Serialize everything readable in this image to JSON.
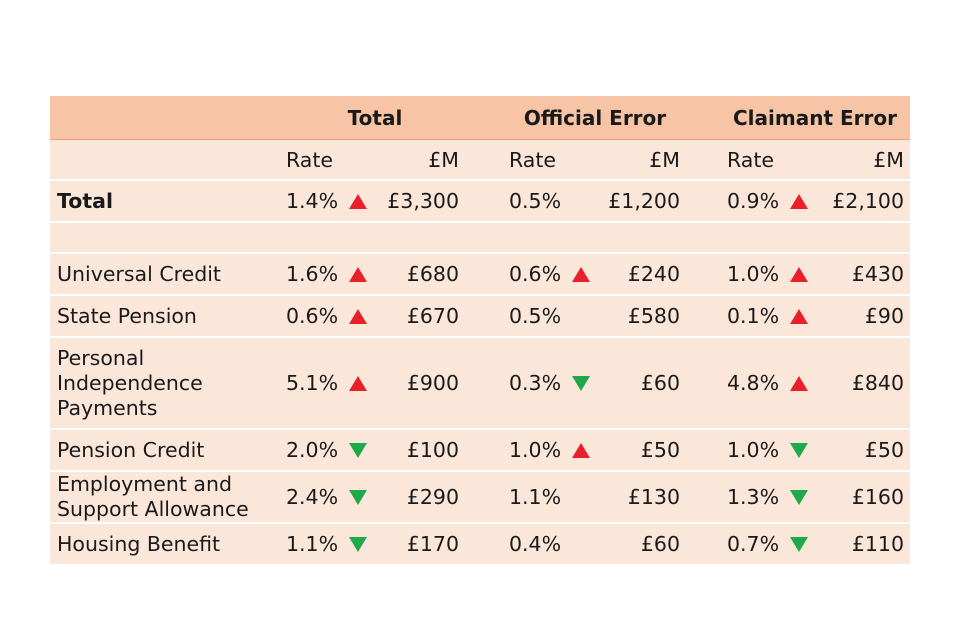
{
  "header": {
    "groups": [
      "Total",
      "Official Error",
      "Claimant Error"
    ],
    "rate_label": "Rate",
    "money_label": "£M"
  },
  "colors": {
    "header_bg": "#f7c4a6",
    "row_bg": "#fbe6da",
    "up_arrow": "#e8202a",
    "down_arrow": "#1ea94a"
  },
  "rows": [
    {
      "name": "Total",
      "bold": true,
      "total_rate": "1.4%",
      "total_arrow": "up",
      "total_m": "£3,300",
      "official_rate": "0.5%",
      "official_arrow": "none",
      "official_m": "£1,200",
      "claimant_rate": "0.9%",
      "claimant_arrow": "up",
      "claimant_m": "£2,100"
    },
    {
      "name": "Universal Credit",
      "total_rate": "1.6%",
      "total_arrow": "up",
      "total_m": "£680",
      "official_rate": "0.6%",
      "official_arrow": "up",
      "official_m": "£240",
      "claimant_rate": "1.0%",
      "claimant_arrow": "up",
      "claimant_m": "£430"
    },
    {
      "name": "State Pension",
      "total_rate": "0.6%",
      "total_arrow": "up",
      "total_m": "£670",
      "official_rate": "0.5%",
      "official_arrow": "none",
      "official_m": "£580",
      "claimant_rate": "0.1%",
      "claimant_arrow": "up",
      "claimant_m": "£90"
    },
    {
      "name": "Personal Independence Payments",
      "total_rate": "5.1%",
      "total_arrow": "up",
      "total_m": "£900",
      "official_rate": "0.3%",
      "official_arrow": "down",
      "official_m": "£60",
      "claimant_rate": "4.8%",
      "claimant_arrow": "up",
      "claimant_m": "£840"
    },
    {
      "name": "Pension Credit",
      "total_rate": "2.0%",
      "total_arrow": "down",
      "total_m": "£100",
      "official_rate": "1.0%",
      "official_arrow": "up",
      "official_m": "£50",
      "claimant_rate": "1.0%",
      "claimant_arrow": "down",
      "claimant_m": "£50"
    },
    {
      "name": "Employment and Support Allowance",
      "total_rate": "2.4%",
      "total_arrow": "down",
      "total_m": "£290",
      "official_rate": "1.1%",
      "official_arrow": "none",
      "official_m": "£130",
      "claimant_rate": "1.3%",
      "claimant_arrow": "down",
      "claimant_m": "£160"
    },
    {
      "name": "Housing Benefit",
      "total_rate": "1.1%",
      "total_arrow": "down",
      "total_m": "£170",
      "official_rate": "0.4%",
      "official_arrow": "none",
      "official_m": "£60",
      "claimant_rate": "0.7%",
      "claimant_arrow": "down",
      "claimant_m": "£110"
    }
  ]
}
